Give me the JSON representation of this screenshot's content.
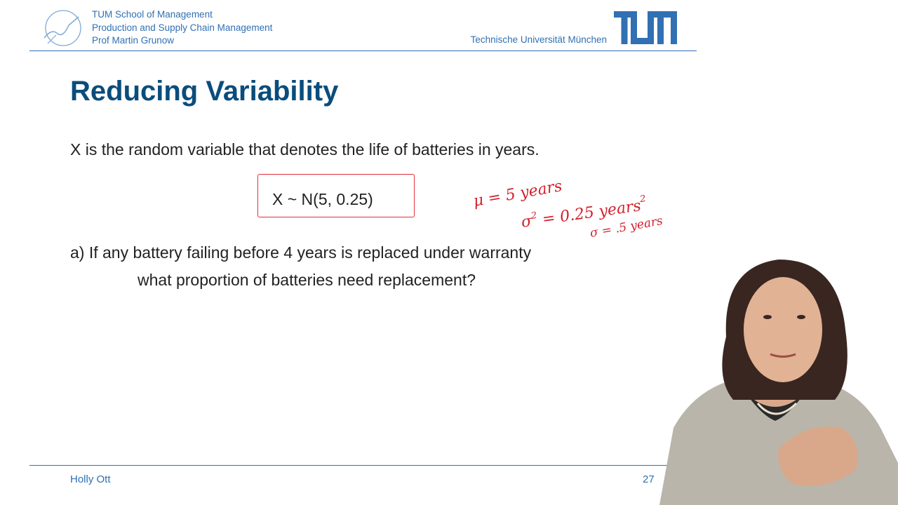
{
  "header": {
    "school": "TUM School of Management",
    "chair": "Production and Supply Chain Management",
    "professor": "Prof Martin Grunow",
    "university": "Technische Universität München",
    "accent_color": "#3070b3",
    "logo_icon": "tum-wave-logo-icon",
    "brand_icon": "tum-logo-icon"
  },
  "slide": {
    "title": "Reducing Variability",
    "title_color": "#0a4d7c",
    "intro": "X is the random variable that denotes the life of batteries in years.",
    "formula": "X ~ N(5, 0.25)",
    "question_line1": "a) If any battery failing before 4 years is replaced under warranty",
    "question_line2": "what proportion of batteries need replacement?"
  },
  "annotations": {
    "color": "#d4202c",
    "mean": "μ = 5 years",
    "variance": "σ",
    "variance_exp": "2",
    "variance_rest": " = 0.25 years",
    "variance_unit_exp": "2",
    "sd": "σ = .5 years"
  },
  "footer": {
    "presenter": "Holly Ott",
    "page": "27"
  }
}
